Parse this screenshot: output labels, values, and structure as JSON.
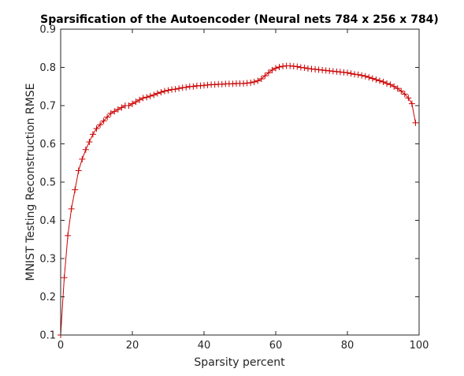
{
  "chart_data": {
    "type": "line",
    "title": "Sparsification of the Autoencoder (Neural nets 784 x 256 x 784)",
    "xlabel": "Sparsity percent",
    "ylabel": "MNIST Testing Reconstruction RMSE",
    "xlim": [
      0,
      100
    ],
    "ylim": [
      0.1,
      0.9
    ],
    "xticks": [
      0,
      20,
      40,
      60,
      80,
      100
    ],
    "yticks": [
      0.1,
      0.2,
      0.3,
      0.4,
      0.5,
      0.6,
      0.7,
      0.8,
      0.9
    ],
    "xtick_labels": [
      "0",
      "20",
      "40",
      "60",
      "80",
      "100"
    ],
    "ytick_labels": [
      "0.1",
      "0.2",
      "0.3",
      "0.4",
      "0.5",
      "0.6",
      "0.7",
      "0.8",
      "0.9"
    ],
    "grid": false,
    "legend": "none",
    "series": [
      {
        "color": "#cc0000",
        "marker": "+",
        "x": [
          0,
          1,
          2,
          3,
          4,
          5,
          6,
          7,
          8,
          9,
          10,
          11,
          12,
          13,
          14,
          15,
          16,
          17,
          18,
          19,
          20,
          21,
          22,
          23,
          24,
          25,
          26,
          27,
          28,
          29,
          30,
          31,
          32,
          33,
          34,
          35,
          36,
          37,
          38,
          39,
          40,
          41,
          42,
          43,
          44,
          45,
          46,
          47,
          48,
          49,
          50,
          51,
          52,
          53,
          54,
          55,
          56,
          57,
          58,
          59,
          60,
          61,
          62,
          63,
          64,
          65,
          66,
          67,
          68,
          69,
          70,
          71,
          72,
          73,
          74,
          75,
          76,
          77,
          78,
          79,
          80,
          81,
          82,
          83,
          84,
          85,
          86,
          87,
          88,
          89,
          90,
          91,
          92,
          93,
          94,
          95,
          96,
          97,
          98,
          99
        ],
        "y": [
          0.1,
          0.25,
          0.36,
          0.43,
          0.48,
          0.53,
          0.56,
          0.585,
          0.605,
          0.625,
          0.64,
          0.65,
          0.66,
          0.67,
          0.68,
          0.685,
          0.69,
          0.695,
          0.7,
          0.7,
          0.705,
          0.71,
          0.715,
          0.72,
          0.722,
          0.725,
          0.728,
          0.732,
          0.735,
          0.738,
          0.74,
          0.742,
          0.743,
          0.745,
          0.747,
          0.748,
          0.75,
          0.75,
          0.752,
          0.752,
          0.753,
          0.754,
          0.755,
          0.755,
          0.756,
          0.756,
          0.757,
          0.757,
          0.757,
          0.758,
          0.758,
          0.758,
          0.759,
          0.76,
          0.762,
          0.765,
          0.77,
          0.778,
          0.786,
          0.793,
          0.798,
          0.801,
          0.803,
          0.804,
          0.804,
          0.803,
          0.802,
          0.8,
          0.799,
          0.797,
          0.796,
          0.795,
          0.794,
          0.793,
          0.792,
          0.791,
          0.79,
          0.789,
          0.788,
          0.787,
          0.786,
          0.784,
          0.782,
          0.781,
          0.779,
          0.777,
          0.774,
          0.771,
          0.768,
          0.765,
          0.762,
          0.758,
          0.755,
          0.75,
          0.745,
          0.738,
          0.73,
          0.72,
          0.705,
          0.655
        ]
      }
    ]
  }
}
